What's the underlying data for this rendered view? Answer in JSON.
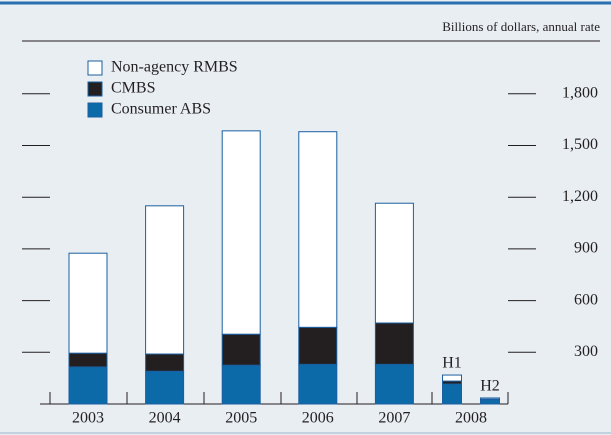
{
  "chart_data": {
    "type": "stacked-bar",
    "unit_label": "Billions of dollars, annual rate",
    "categories": [
      "2003",
      "2004",
      "2005",
      "2006",
      "2007",
      "H1",
      "H2"
    ],
    "x_group_label": "2008",
    "series": [
      {
        "name": "Consumer ABS",
        "color": "#0d6aa8",
        "values": [
          215,
          190,
          225,
          230,
          230,
          116,
          25
        ]
      },
      {
        "name": "CMBS",
        "color": "#231f20",
        "values": [
          80,
          100,
          180,
          215,
          240,
          17,
          3
        ]
      },
      {
        "name": "Non-agency RMBS",
        "color": "#ffffff",
        "values": [
          580,
          860,
          1180,
          1135,
          695,
          35,
          7
        ]
      }
    ],
    "ylim": [
      0,
      2050
    ],
    "yticks": [
      300,
      600,
      900,
      {
        "value": 1200,
        "label": "1,200"
      },
      {
        "value": 1500,
        "label": "1,500"
      },
      {
        "value": 1800,
        "label": "1,800"
      }
    ]
  }
}
